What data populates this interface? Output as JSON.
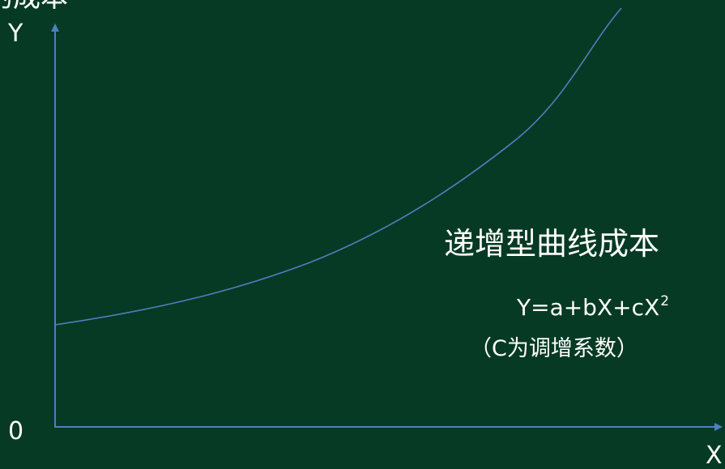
{
  "diagram": {
    "top_title": "的成本",
    "y_axis_label": "Y",
    "origin_label": "0",
    "x_axis_label": "X",
    "curve_label": "递增型曲线成本",
    "formula": {
      "text": "Y=a+bX+cX",
      "exponent": "2"
    },
    "note": "（C为调增系数）",
    "colors": {
      "background": "#063a24",
      "lines": "#4f7fc0",
      "text": "#ffffff"
    }
  }
}
